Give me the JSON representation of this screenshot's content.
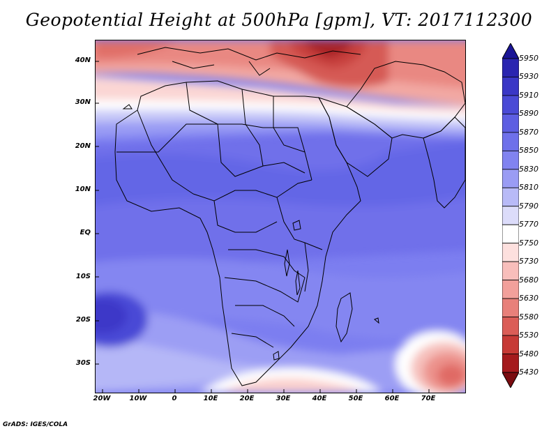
{
  "title": "Geopotential Height at 500hPa [gpm], VT: 2017112300",
  "footer": "GrADS: IGES/COLA",
  "map": {
    "region": "Africa and Middle East",
    "variable": "500hPa geopotential height",
    "units": "gpm",
    "valid_time": "2017112300",
    "lat_labels": [
      "40N",
      "30N",
      "20N",
      "10N",
      "EQ",
      "10S",
      "20S",
      "30S"
    ],
    "lat_values": [
      40,
      30,
      20,
      10,
      0,
      -10,
      -20,
      -30
    ],
    "lon_labels": [
      "20W",
      "10W",
      "0",
      "10E",
      "20E",
      "30E",
      "40E",
      "50E",
      "60E",
      "70E"
    ],
    "lon_values": [
      -20,
      -10,
      0,
      10,
      20,
      30,
      40,
      50,
      60,
      70
    ],
    "lon_range": [
      -22,
      79
    ],
    "lat_range": [
      -36,
      45
    ]
  },
  "colorbar": {
    "labels": [
      "5950",
      "5930",
      "5910",
      "5890",
      "5870",
      "5850",
      "5830",
      "5810",
      "5790",
      "5770",
      "5750",
      "5730",
      "5680",
      "5630",
      "5580",
      "5530",
      "5480",
      "5430"
    ],
    "colors": [
      "#1a1596",
      "#2a25b0",
      "#3a37c6",
      "#4a4ad6",
      "#5d5ee2",
      "#6e70ea",
      "#8183f0",
      "#9a9cf4",
      "#b8baf7",
      "#dcdcfa",
      "#ffffff",
      "#fde0de",
      "#f8bebb",
      "#f2a09b",
      "#e8807a",
      "#db5d57",
      "#c73a36",
      "#a51a1d",
      "#7a0c10"
    ]
  }
}
